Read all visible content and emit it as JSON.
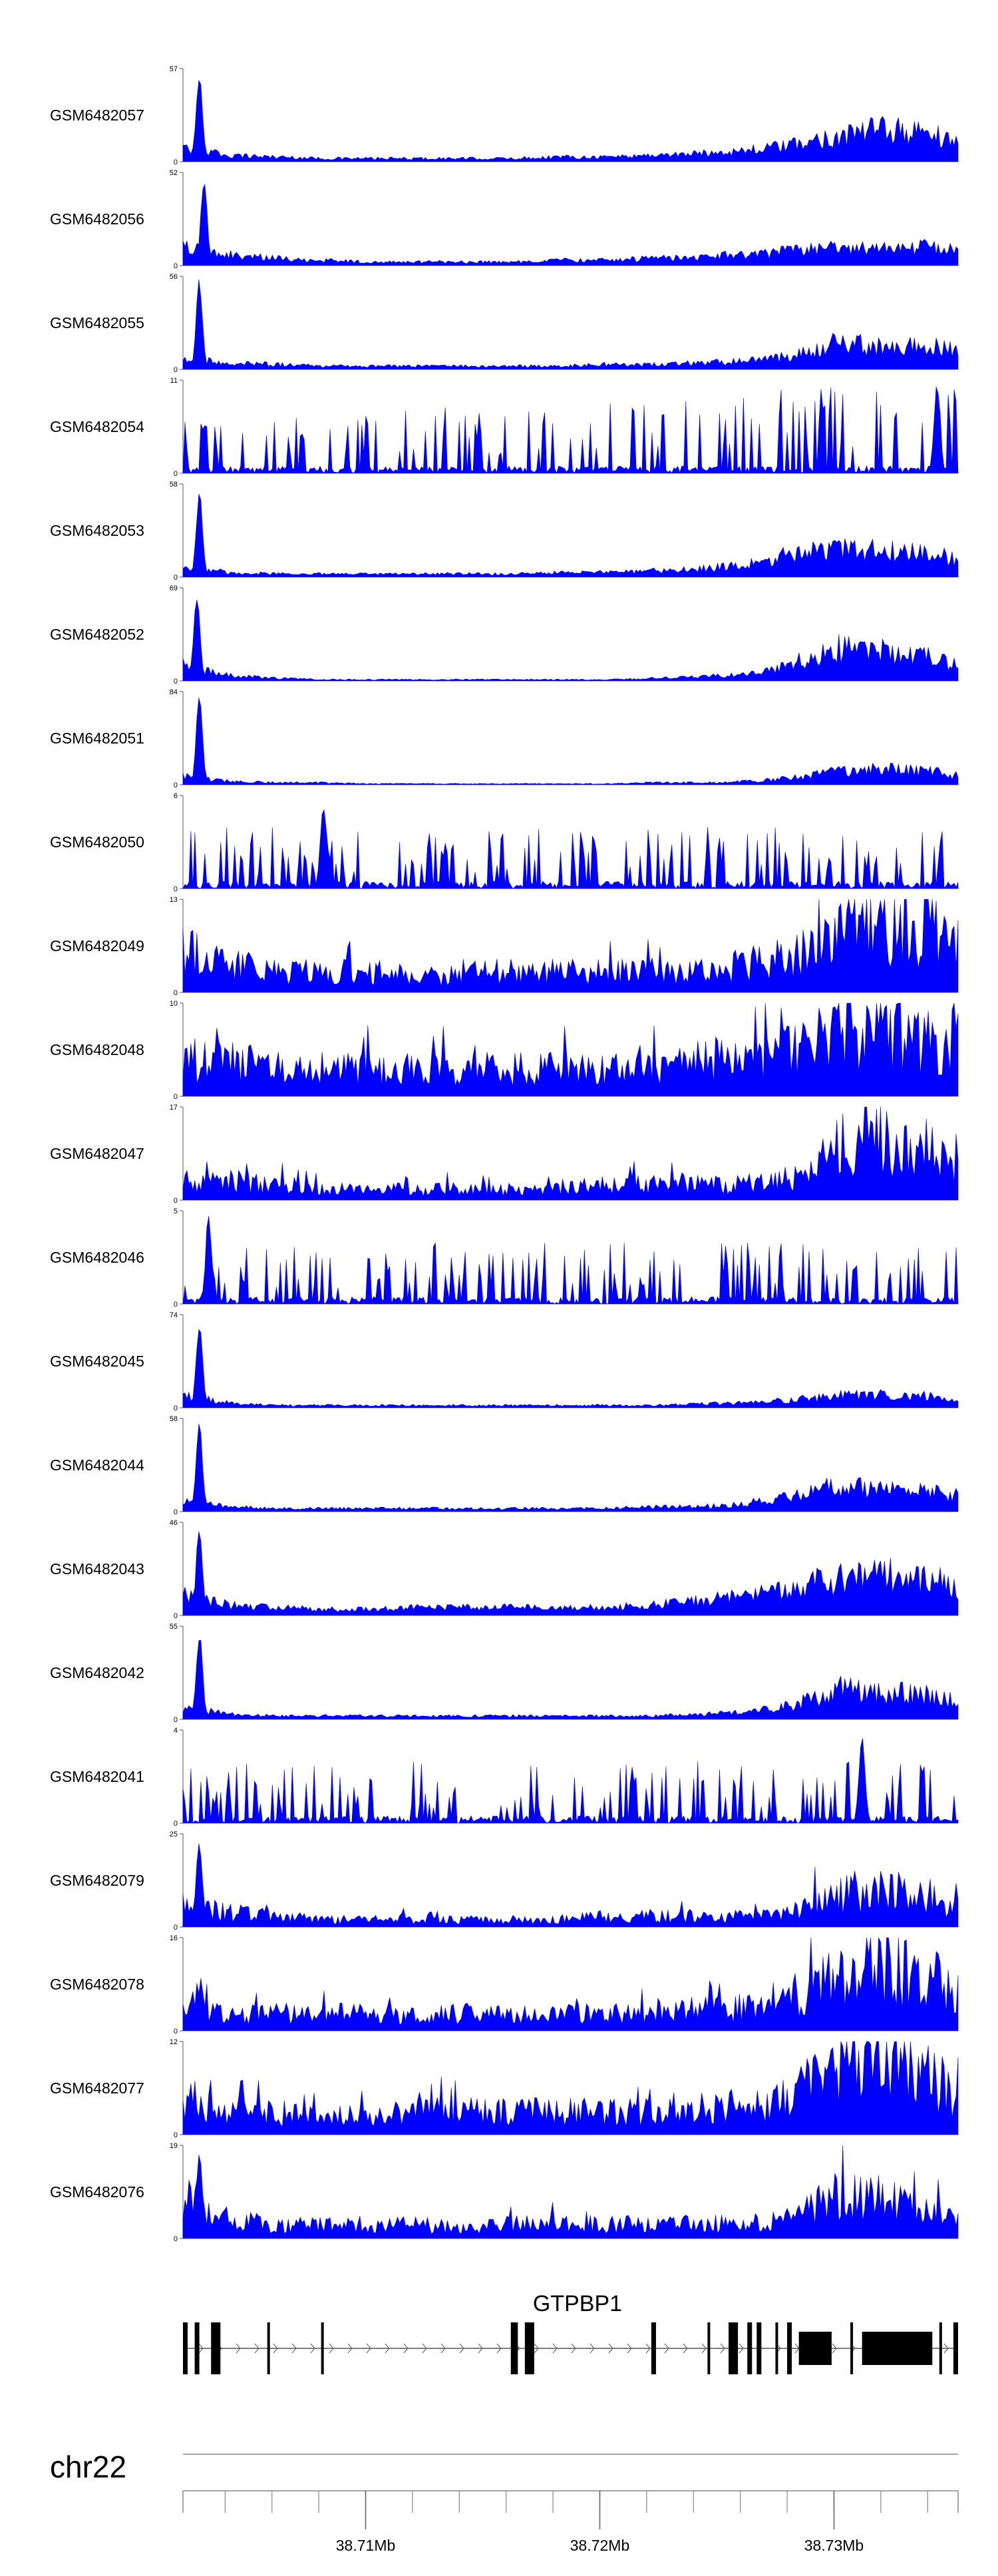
{
  "chart_data": {
    "type": "area",
    "title": "",
    "chromosome": "chr22",
    "xlabel": "",
    "ylabel": "",
    "xlim": [
      38.7022,
      38.7353
    ],
    "x_ticks": [
      {
        "value": 38.71,
        "label": "38.71Mb"
      },
      {
        "value": 38.72,
        "label": "38.72Mb"
      },
      {
        "value": 38.73,
        "label": "38.73Mb"
      }
    ],
    "axis_minor_ticks": [
      38.704,
      38.706,
      38.708,
      38.71,
      38.712,
      38.714,
      38.716,
      38.718,
      38.72,
      38.722,
      38.724,
      38.726,
      38.728,
      38.73,
      38.732,
      38.734
    ],
    "fill_color": "#0000ff",
    "x_profile_grid": [
      38.7022,
      38.7042,
      38.7062,
      38.7082,
      38.7102,
      38.7122,
      38.7142,
      38.7162,
      38.7182,
      38.7202,
      38.7222,
      38.7242,
      38.7262,
      38.7282,
      38.7302,
      38.7322,
      38.7342,
      38.7353
    ],
    "series": [
      {
        "name": "GSM6482057",
        "ymax": 57,
        "peak_x": 38.7029,
        "peak_y": 57,
        "profile": [
          8,
          4,
          3,
          2,
          2,
          2,
          2,
          2,
          3,
          3,
          4,
          5,
          7,
          10,
          16,
          20,
          17,
          12
        ],
        "shape": "smooth"
      },
      {
        "name": "GSM6482056",
        "ymax": 52,
        "peak_x": 38.7031,
        "peak_y": 52,
        "profile": [
          10,
          6,
          4,
          3,
          2,
          2,
          2,
          2,
          3,
          3,
          4,
          5,
          6,
          8,
          10,
          11,
          10,
          9
        ],
        "shape": "smooth"
      },
      {
        "name": "GSM6482055",
        "ymax": 56,
        "peak_x": 38.7029,
        "peak_y": 56,
        "profile": [
          7,
          4,
          3,
          2,
          2,
          2,
          2,
          2,
          2,
          3,
          3,
          4,
          5,
          8,
          16,
          13,
          14,
          11
        ],
        "shape": "smooth"
      },
      {
        "name": "GSM6482054",
        "ymax": 11,
        "peak_x": 38.7344,
        "peak_y": 11,
        "profile": [
          5,
          3,
          2,
          2,
          2,
          3,
          3,
          4,
          3,
          4,
          4,
          5,
          6,
          7,
          7,
          8,
          8,
          8
        ],
        "shape": "spiky"
      },
      {
        "name": "GSM6482053",
        "ymax": 58,
        "peak_x": 38.7029,
        "peak_y": 58,
        "profile": [
          6,
          3,
          2,
          2,
          2,
          2,
          2,
          2,
          3,
          3,
          4,
          5,
          8,
          15,
          17,
          16,
          14,
          11
        ],
        "shape": "smooth"
      },
      {
        "name": "GSM6482052",
        "ymax": 69,
        "peak_x": 38.7028,
        "peak_y": 69,
        "profile": [
          12,
          4,
          2,
          1,
          1,
          1,
          1,
          1,
          1,
          1,
          2,
          3,
          5,
          13,
          24,
          22,
          17,
          12
        ],
        "shape": "smooth"
      },
      {
        "name": "GSM6482051",
        "ymax": 84,
        "peak_x": 38.7029,
        "peak_y": 84,
        "profile": [
          8,
          3,
          2,
          2,
          1,
          1,
          1,
          1,
          1,
          1,
          2,
          2,
          3,
          6,
          12,
          14,
          12,
          8
        ],
        "shape": "smooth"
      },
      {
        "name": "GSM6482050",
        "ymax": 6,
        "peak_x": 38.7082,
        "peak_y": 6,
        "profile": [
          2,
          2,
          2,
          2,
          2,
          2,
          2,
          2,
          2,
          2,
          2,
          2,
          2,
          2,
          2,
          2,
          2,
          2
        ],
        "shape": "spiky"
      },
      {
        "name": "GSM6482049",
        "ymax": 13,
        "peak_x": 38.7312,
        "peak_y": 13,
        "profile": [
          6,
          4,
          3,
          3,
          3,
          2,
          3,
          3,
          3,
          3,
          3,
          3,
          4,
          5,
          9,
          10,
          9,
          7
        ],
        "shape": "jagged"
      },
      {
        "name": "GSM6482048",
        "ymax": 10,
        "peak_x": 38.7315,
        "peak_y": 10,
        "profile": [
          4,
          4,
          3,
          3,
          3,
          3,
          3,
          3,
          3,
          3,
          3,
          4,
          4,
          5,
          7,
          7,
          6,
          6
        ],
        "shape": "jagged"
      },
      {
        "name": "GSM6482047",
        "ymax": 17,
        "peak_x": 38.7316,
        "peak_y": 17,
        "profile": [
          4,
          3,
          3,
          2,
          2,
          2,
          2,
          2,
          2,
          3,
          3,
          3,
          3,
          4,
          10,
          12,
          9,
          6
        ],
        "shape": "jagged"
      },
      {
        "name": "GSM6482046",
        "ymax": 5,
        "peak_x": 38.7033,
        "peak_y": 5,
        "profile": [
          2,
          2,
          2,
          2,
          2,
          2,
          2,
          2,
          2,
          2,
          2,
          2,
          2,
          2,
          2,
          2,
          2,
          2
        ],
        "shape": "spiky"
      },
      {
        "name": "GSM6482045",
        "ymax": 74,
        "peak_x": 38.7029,
        "peak_y": 74,
        "profile": [
          10,
          4,
          2,
          2,
          2,
          2,
          2,
          2,
          2,
          2,
          2,
          3,
          4,
          6,
          10,
          10,
          9,
          7
        ],
        "shape": "smooth"
      },
      {
        "name": "GSM6482044",
        "ymax": 58,
        "peak_x": 38.7029,
        "peak_y": 58,
        "profile": [
          8,
          3,
          2,
          2,
          2,
          2,
          2,
          2,
          2,
          2,
          3,
          3,
          5,
          10,
          16,
          14,
          12,
          10
        ],
        "shape": "smooth"
      },
      {
        "name": "GSM6482043",
        "ymax": 46,
        "peak_x": 38.7029,
        "peak_y": 46,
        "profile": [
          10,
          5,
          4,
          3,
          3,
          4,
          4,
          4,
          4,
          4,
          5,
          7,
          10,
          14,
          18,
          20,
          18,
          14
        ],
        "shape": "smooth"
      },
      {
        "name": "GSM6482042",
        "ymax": 55,
        "peak_x": 38.7029,
        "peak_y": 55,
        "profile": [
          7,
          3,
          2,
          2,
          2,
          2,
          2,
          2,
          2,
          2,
          2,
          3,
          4,
          8,
          18,
          16,
          14,
          10
        ],
        "shape": "smooth"
      },
      {
        "name": "GSM6482041",
        "ymax": 4,
        "peak_x": 38.7312,
        "peak_y": 4,
        "profile": [
          2,
          2,
          2,
          2,
          2,
          2,
          2,
          2,
          2,
          2,
          2,
          2,
          2,
          2,
          2,
          2,
          2,
          2
        ],
        "shape": "spiky"
      },
      {
        "name": "GSM6482079",
        "ymax": 25,
        "peak_x": 38.7029,
        "peak_y": 25,
        "profile": [
          6,
          4,
          3,
          2,
          2,
          2,
          2,
          2,
          2,
          3,
          3,
          3,
          3,
          4,
          9,
          11,
          8,
          5
        ],
        "shape": "jagged"
      },
      {
        "name": "GSM6482078",
        "ymax": 16,
        "peak_x": 38.7314,
        "peak_y": 16,
        "profile": [
          5,
          3,
          3,
          3,
          3,
          3,
          3,
          3,
          3,
          3,
          3,
          4,
          4,
          6,
          10,
          11,
          9,
          7
        ],
        "shape": "jagged"
      },
      {
        "name": "GSM6482077",
        "ymax": 12,
        "peak_x": 38.7318,
        "peak_y": 12,
        "profile": [
          5,
          3,
          3,
          2,
          3,
          3,
          3,
          3,
          3,
          3,
          3,
          3,
          4,
          5,
          9,
          10,
          7,
          5
        ],
        "shape": "jagged"
      },
      {
        "name": "GSM6482076",
        "ymax": 19,
        "peak_x": 38.7029,
        "peak_y": 19,
        "profile": [
          8,
          4,
          3,
          3,
          3,
          3,
          2,
          3,
          3,
          3,
          3,
          3,
          3,
          4,
          9,
          8,
          5,
          4
        ],
        "shape": "jagged"
      }
    ],
    "gene": {
      "name": "GTPBP1",
      "strand": "+",
      "start": 38.7022,
      "end": 38.7353,
      "exons": [
        [
          38.7022,
          38.7024
        ],
        [
          38.7027,
          38.7029
        ],
        [
          38.7034,
          38.7038
        ],
        [
          38.7058,
          38.7059
        ],
        [
          38.7081,
          38.7082
        ],
        [
          38.7162,
          38.7165
        ],
        [
          38.7168,
          38.7172
        ],
        [
          38.7222,
          38.7224
        ],
        [
          38.7246,
          38.7247
        ],
        [
          38.7255,
          38.7259
        ],
        [
          38.7263,
          38.7265
        ],
        [
          38.7267,
          38.7269
        ],
        [
          38.7275,
          38.7276
        ],
        [
          38.728,
          38.7282
        ],
        [
          38.7285,
          38.7299
        ],
        [
          38.7307,
          38.7308
        ],
        [
          38.7312,
          38.7342
        ],
        [
          38.7345,
          38.7346
        ],
        [
          38.7351,
          38.7353
        ]
      ]
    }
  }
}
